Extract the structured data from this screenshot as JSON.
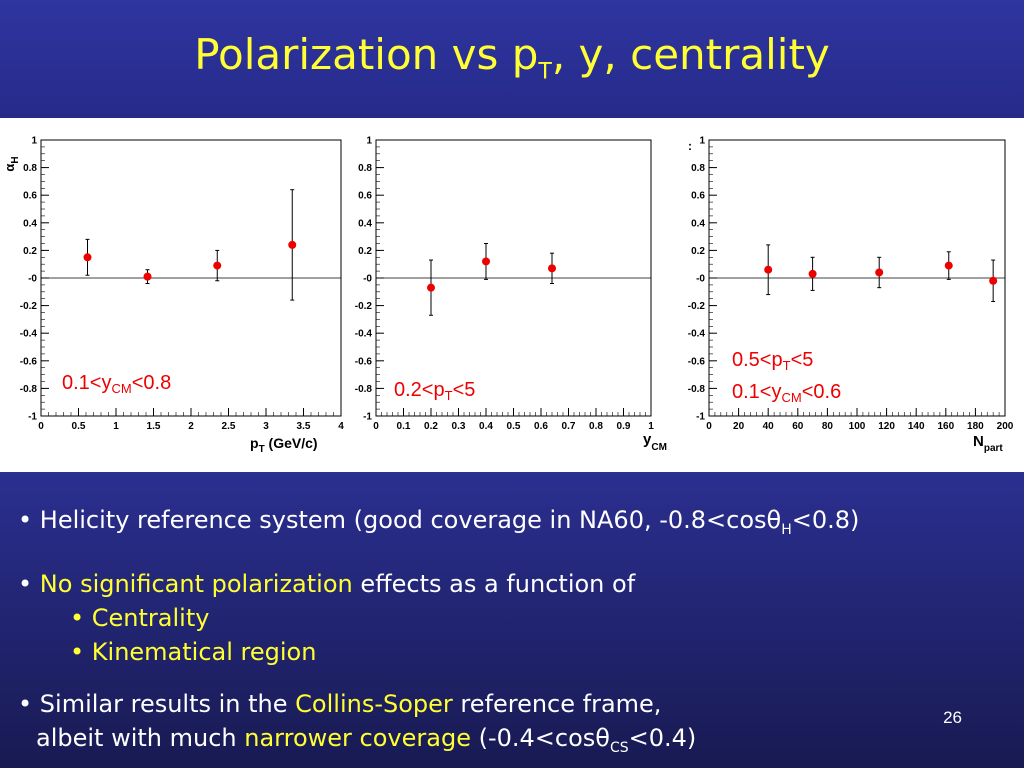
{
  "slide": {
    "title_main": "Polarization vs p",
    "title_sub": "T",
    "title_rest": ", y, centrality",
    "page_number": "26"
  },
  "bullets": {
    "b1_text": "• Helicity reference system (good coverage in NA60, -0.8<cos",
    "b1_theta": "θ",
    "b1_sub": "H",
    "b1_end": "<0.8)",
    "b2_bullet": "• ",
    "b2_highlight": "No significant polarization",
    "b2_rest": " effects as a function of",
    "b2_sub1": "• Centrality",
    "b2_sub2": "• Kinematical region",
    "b3_start": "• Similar results in the ",
    "b3_highlight": "Collins-Soper",
    "b3_rest": " reference frame,",
    "b3_line2_start": "albeit with much ",
    "b3_line2_highlight": "narrower coverage",
    "b3_line2_mid": " (-0.4<cos",
    "b3_line2_theta": "θ",
    "b3_line2_sub": "CS",
    "b3_line2_end": "<0.4)"
  },
  "chart_data": [
    {
      "type": "scatter",
      "ylabel": "αH",
      "xlabel": "pT (GeV/c)",
      "xlim": [
        0,
        4
      ],
      "ylim": [
        -1,
        1
      ],
      "x_ticks": [
        "0",
        "0.5",
        "1",
        "1.5",
        "2",
        "2.5",
        "3",
        "3.5",
        "4"
      ],
      "y_ticks": [
        "1",
        "0.8",
        "0.6",
        "0.4",
        "0.2",
        "-0",
        "-0.2",
        "-0.4",
        "-0.6",
        "-0.8",
        "-1"
      ],
      "annotation": "0.1<yCM<0.8",
      "points": [
        {
          "x": 0.62,
          "y": 0.15,
          "err": 0.13
        },
        {
          "x": 1.42,
          "y": 0.01,
          "err": 0.05
        },
        {
          "x": 2.35,
          "y": 0.09,
          "err": 0.11
        },
        {
          "x": 3.35,
          "y": 0.24,
          "err": 0.4
        }
      ]
    },
    {
      "type": "scatter",
      "xlabel": "yCM",
      "xlim": [
        0,
        1
      ],
      "ylim": [
        -1,
        1
      ],
      "x_ticks": [
        "0",
        "0.1",
        "0.2",
        "0.3",
        "0.4",
        "0.5",
        "0.6",
        "0.7",
        "0.8",
        "0.9",
        "1"
      ],
      "y_ticks": [
        "1",
        "0.8",
        "0.6",
        "0.4",
        "0.2",
        "-0",
        "-0.2",
        "-0.4",
        "-0.6",
        "-0.8",
        "-1"
      ],
      "annotation": "0.2<pT<5",
      "points": [
        {
          "x": 0.2,
          "y": -0.07,
          "err": 0.2
        },
        {
          "x": 0.4,
          "y": 0.12,
          "err": 0.13
        },
        {
          "x": 0.64,
          "y": 0.07,
          "err": 0.11
        }
      ]
    },
    {
      "type": "scatter",
      "xlabel": "Npart",
      "xlim": [
        0,
        200
      ],
      "ylim": [
        -1,
        1
      ],
      "x_ticks": [
        "0",
        "20",
        "40",
        "60",
        "80",
        "100",
        "120",
        "140",
        "160",
        "180",
        "200"
      ],
      "y_ticks": [
        "1",
        "0.8",
        "0.6",
        "0.4",
        "0.2",
        "-0",
        "-0.2",
        "-0.4",
        "-0.6",
        "-0.8",
        "-1"
      ],
      "annotation_line1": "0.5<pT<5",
      "annotation_line2": "0.1<yCM<0.6",
      "points": [
        {
          "x": 40,
          "y": 0.06,
          "err": 0.18
        },
        {
          "x": 70,
          "y": 0.03,
          "err": 0.12
        },
        {
          "x": 115,
          "y": 0.04,
          "err": 0.11
        },
        {
          "x": 162,
          "y": 0.09,
          "err": 0.1
        },
        {
          "x": 192,
          "y": -0.02,
          "err": 0.15
        }
      ]
    }
  ]
}
